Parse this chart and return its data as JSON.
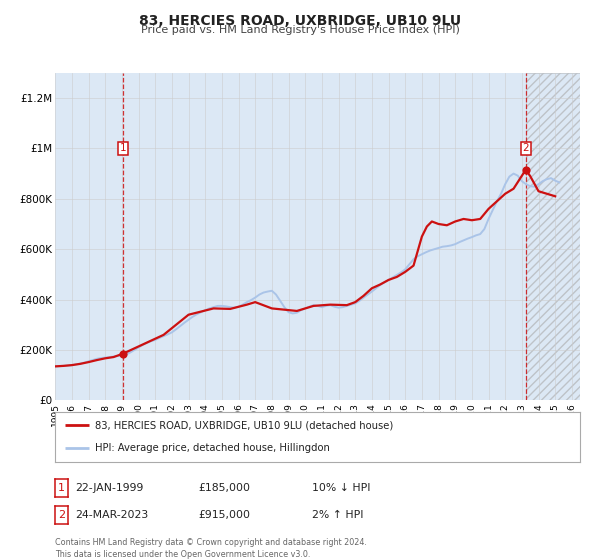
{
  "title": "83, HERCIES ROAD, UXBRIDGE, UB10 9LU",
  "subtitle": "Price paid vs. HM Land Registry's House Price Index (HPI)",
  "background_color": "#ffffff",
  "plot_bg_color": "#dce8f5",
  "ylim": [
    0,
    1300000
  ],
  "xlim_start": 1995.0,
  "xlim_end": 2026.5,
  "yticks": [
    0,
    200000,
    400000,
    600000,
    800000,
    1000000,
    1200000
  ],
  "ytick_labels": [
    "£0",
    "£200K",
    "£400K",
    "£600K",
    "£800K",
    "£1M",
    "£1.2M"
  ],
  "xticks": [
    1995,
    1996,
    1997,
    1998,
    1999,
    2000,
    2001,
    2002,
    2003,
    2004,
    2005,
    2006,
    2007,
    2008,
    2009,
    2010,
    2011,
    2012,
    2013,
    2014,
    2015,
    2016,
    2017,
    2018,
    2019,
    2020,
    2021,
    2022,
    2023,
    2024,
    2025,
    2026
  ],
  "hpi_color": "#aac4e8",
  "price_color": "#cc1111",
  "vline1_x": 1999.05,
  "vline2_x": 2023.23,
  "marker1_x": 1999.05,
  "marker1_y": 185000,
  "marker2_x": 2023.23,
  "marker2_y": 915000,
  "legend_label1": "83, HERCIES ROAD, UXBRIDGE, UB10 9LU (detached house)",
  "legend_label2": "HPI: Average price, detached house, Hillingdon",
  "annotation1_label": "1",
  "annotation2_label": "2",
  "table_row1": [
    "1",
    "22-JAN-1999",
    "£185,000",
    "10% ↓ HPI"
  ],
  "table_row2": [
    "2",
    "24-MAR-2023",
    "£915,000",
    "2% ↑ HPI"
  ],
  "footer_text": "Contains HM Land Registry data © Crown copyright and database right 2024.\nThis data is licensed under the Open Government Licence v3.0.",
  "hpi_data_x": [
    1995.0,
    1995.25,
    1995.5,
    1995.75,
    1996.0,
    1996.25,
    1996.5,
    1996.75,
    1997.0,
    1997.25,
    1997.5,
    1997.75,
    1998.0,
    1998.25,
    1998.5,
    1998.75,
    1999.0,
    1999.25,
    1999.5,
    1999.75,
    2000.0,
    2000.25,
    2000.5,
    2000.75,
    2001.0,
    2001.25,
    2001.5,
    2001.75,
    2002.0,
    2002.25,
    2002.5,
    2002.75,
    2003.0,
    2003.25,
    2003.5,
    2003.75,
    2004.0,
    2004.25,
    2004.5,
    2004.75,
    2005.0,
    2005.25,
    2005.5,
    2005.75,
    2006.0,
    2006.25,
    2006.5,
    2006.75,
    2007.0,
    2007.25,
    2007.5,
    2007.75,
    2008.0,
    2008.25,
    2008.5,
    2008.75,
    2009.0,
    2009.25,
    2009.5,
    2009.75,
    2010.0,
    2010.25,
    2010.5,
    2010.75,
    2011.0,
    2011.25,
    2011.5,
    2011.75,
    2012.0,
    2012.25,
    2012.5,
    2012.75,
    2013.0,
    2013.25,
    2013.5,
    2013.75,
    2014.0,
    2014.25,
    2014.5,
    2014.75,
    2015.0,
    2015.25,
    2015.5,
    2015.75,
    2016.0,
    2016.25,
    2016.5,
    2016.75,
    2017.0,
    2017.25,
    2017.5,
    2017.75,
    2018.0,
    2018.25,
    2018.5,
    2018.75,
    2019.0,
    2019.25,
    2019.5,
    2019.75,
    2020.0,
    2020.25,
    2020.5,
    2020.75,
    2021.0,
    2021.25,
    2021.5,
    2021.75,
    2022.0,
    2022.25,
    2022.5,
    2022.75,
    2023.0,
    2023.25,
    2023.5,
    2023.75,
    2024.0,
    2024.25,
    2024.5,
    2024.75,
    2025.0,
    2025.25
  ],
  "hpi_data_y": [
    135000,
    136000,
    137000,
    138500,
    140000,
    143000,
    146000,
    150000,
    155000,
    160000,
    165000,
    168000,
    170000,
    172000,
    174000,
    176000,
    178000,
    182000,
    190000,
    200000,
    210000,
    220000,
    228000,
    235000,
    240000,
    248000,
    255000,
    262000,
    270000,
    282000,
    295000,
    308000,
    320000,
    332000,
    342000,
    350000,
    358000,
    365000,
    370000,
    375000,
    375000,
    373000,
    370000,
    368000,
    372000,
    380000,
    390000,
    398000,
    408000,
    420000,
    428000,
    432000,
    435000,
    420000,
    395000,
    370000,
    350000,
    345000,
    348000,
    358000,
    365000,
    372000,
    378000,
    375000,
    370000,
    375000,
    378000,
    372000,
    368000,
    370000,
    375000,
    380000,
    385000,
    395000,
    408000,
    420000,
    432000,
    445000,
    458000,
    468000,
    478000,
    488000,
    498000,
    508000,
    520000,
    540000,
    560000,
    572000,
    580000,
    588000,
    595000,
    600000,
    605000,
    610000,
    612000,
    615000,
    620000,
    628000,
    635000,
    642000,
    648000,
    655000,
    660000,
    680000,
    720000,
    755000,
    790000,
    820000,
    858000,
    888000,
    900000,
    892000,
    870000,
    858000,
    850000,
    848000,
    858000,
    870000,
    878000,
    882000,
    872000,
    865000
  ],
  "price_data_x": [
    1995.0,
    1995.5,
    1996.0,
    1996.5,
    1997.0,
    1997.5,
    1998.0,
    1998.5,
    1999.05,
    2001.5,
    2003.0,
    2004.5,
    2005.5,
    2006.5,
    2007.0,
    2008.0,
    2009.5,
    2010.5,
    2011.5,
    2012.5,
    2013.0,
    2013.5,
    2014.0,
    2014.5,
    2015.0,
    2015.5,
    2016.0,
    2016.5,
    2017.0,
    2017.3,
    2017.6,
    2018.0,
    2018.5,
    2019.0,
    2019.5,
    2020.0,
    2020.5,
    2021.0,
    2021.5,
    2022.0,
    2022.5,
    2023.23,
    2023.5,
    2024.0,
    2024.5,
    2025.0
  ],
  "price_data_y": [
    135000,
    137000,
    140000,
    145000,
    152000,
    160000,
    167000,
    172000,
    185000,
    260000,
    340000,
    365000,
    363000,
    380000,
    390000,
    365000,
    355000,
    375000,
    380000,
    378000,
    390000,
    415000,
    445000,
    460000,
    478000,
    490000,
    510000,
    535000,
    650000,
    690000,
    710000,
    700000,
    695000,
    710000,
    720000,
    715000,
    720000,
    760000,
    790000,
    820000,
    840000,
    915000,
    890000,
    830000,
    820000,
    810000
  ]
}
